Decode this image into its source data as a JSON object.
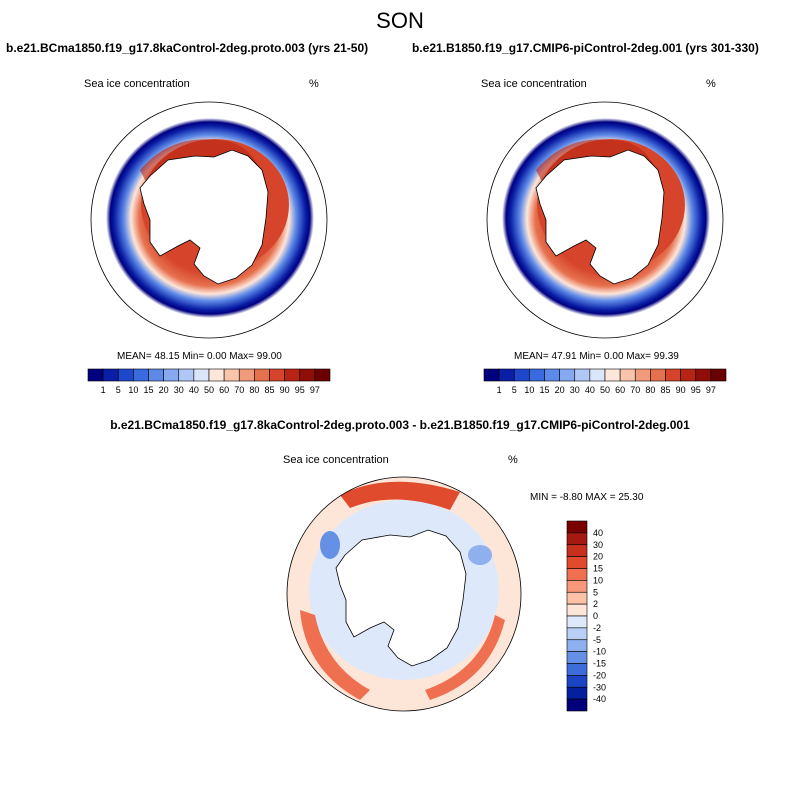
{
  "figure_title": "SON",
  "panels": [
    {
      "title": "b.e21.BCma1850.f19_g17.8kaControl-2deg.proto.003 (yrs 21-50)",
      "variable": "Sea ice concentration",
      "units": "%",
      "stats": "MEAN=  48.15  Min=   0.00  Max=  99.00"
    },
    {
      "title": "b.e21.B1850.f19_g17.CMIP6-piControl-2deg.001 (yrs 301-330)",
      "variable": "Sea ice concentration",
      "units": "%",
      "stats": "MEAN=  47.91  Min=   0.00  Max=  99.39"
    },
    {
      "title": "b.e21.BCma1850.f19_g17.8kaControl-2deg.proto.003 - b.e21.B1850.f19_g17.CMIP6-piControl-2deg.001",
      "variable": "Sea ice concentration",
      "units": "%",
      "stats": "MIN =  -8.80 MAX =  25.30"
    }
  ],
  "chart_data": [
    {
      "type": "heatmap",
      "title": "b.e21.BCma1850.f19_g17.8kaControl-2deg.proto.003 (yrs 21-50)",
      "subtitle": "Sea ice concentration",
      "units": "%",
      "projection": "south polar stereographic",
      "mean": 48.15,
      "min": 0.0,
      "max": 99.0,
      "colorbar_levels": [
        "1",
        "5",
        "10",
        "15",
        "20",
        "30",
        "40",
        "50",
        "60",
        "70",
        "80",
        "85",
        "90",
        "95",
        "97"
      ],
      "colorbar_colors": [
        "#00007f",
        "#0a1fa6",
        "#1f47cc",
        "#3a6ae0",
        "#5d8ae8",
        "#86a9f0",
        "#b1c8f6",
        "#dbe6fb",
        "#fde6da",
        "#f8c4ab",
        "#f19b7c",
        "#e6714f",
        "#d6452b",
        "#b82414",
        "#8f0e08",
        "#6a0000"
      ]
    },
    {
      "type": "heatmap",
      "title": "b.e21.B1850.f19_g17.CMIP6-piControl-2deg.001 (yrs 301-330)",
      "subtitle": "Sea ice concentration",
      "units": "%",
      "projection": "south polar stereographic",
      "mean": 47.91,
      "min": 0.0,
      "max": 99.39,
      "colorbar_levels": [
        "1",
        "5",
        "10",
        "15",
        "20",
        "30",
        "40",
        "50",
        "60",
        "70",
        "80",
        "85",
        "90",
        "95",
        "97"
      ],
      "colorbar_colors": [
        "#00007f",
        "#0a1fa6",
        "#1f47cc",
        "#3a6ae0",
        "#5d8ae8",
        "#86a9f0",
        "#b1c8f6",
        "#dbe6fb",
        "#fde6da",
        "#f8c4ab",
        "#f19b7c",
        "#e6714f",
        "#d6452b",
        "#b82414",
        "#8f0e08",
        "#6a0000"
      ]
    },
    {
      "type": "heatmap",
      "title": "b.e21.BCma1850.f19_g17.8kaControl-2deg.proto.003 - b.e21.B1850.f19_g17.CMIP6-piControl-2deg.001",
      "subtitle": "Sea ice concentration",
      "units": "%",
      "projection": "south polar stereographic",
      "min": -8.8,
      "max": 25.3,
      "colorbar_levels": [
        "40",
        "30",
        "20",
        "15",
        "10",
        "5",
        "2",
        "0",
        "-2",
        "-5",
        "-10",
        "-15",
        "-20",
        "-30",
        "-40"
      ],
      "colorbar_colors": [
        "#7a0000",
        "#a51a10",
        "#c8301e",
        "#e04b2e",
        "#ef7050",
        "#f7987a",
        "#fbc2a8",
        "#fde6d8",
        "#dde9fa",
        "#b9cff5",
        "#8eb0ee",
        "#6590e6",
        "#3d6ddb",
        "#1a46c4",
        "#05209c",
        "#00007a"
      ]
    }
  ]
}
